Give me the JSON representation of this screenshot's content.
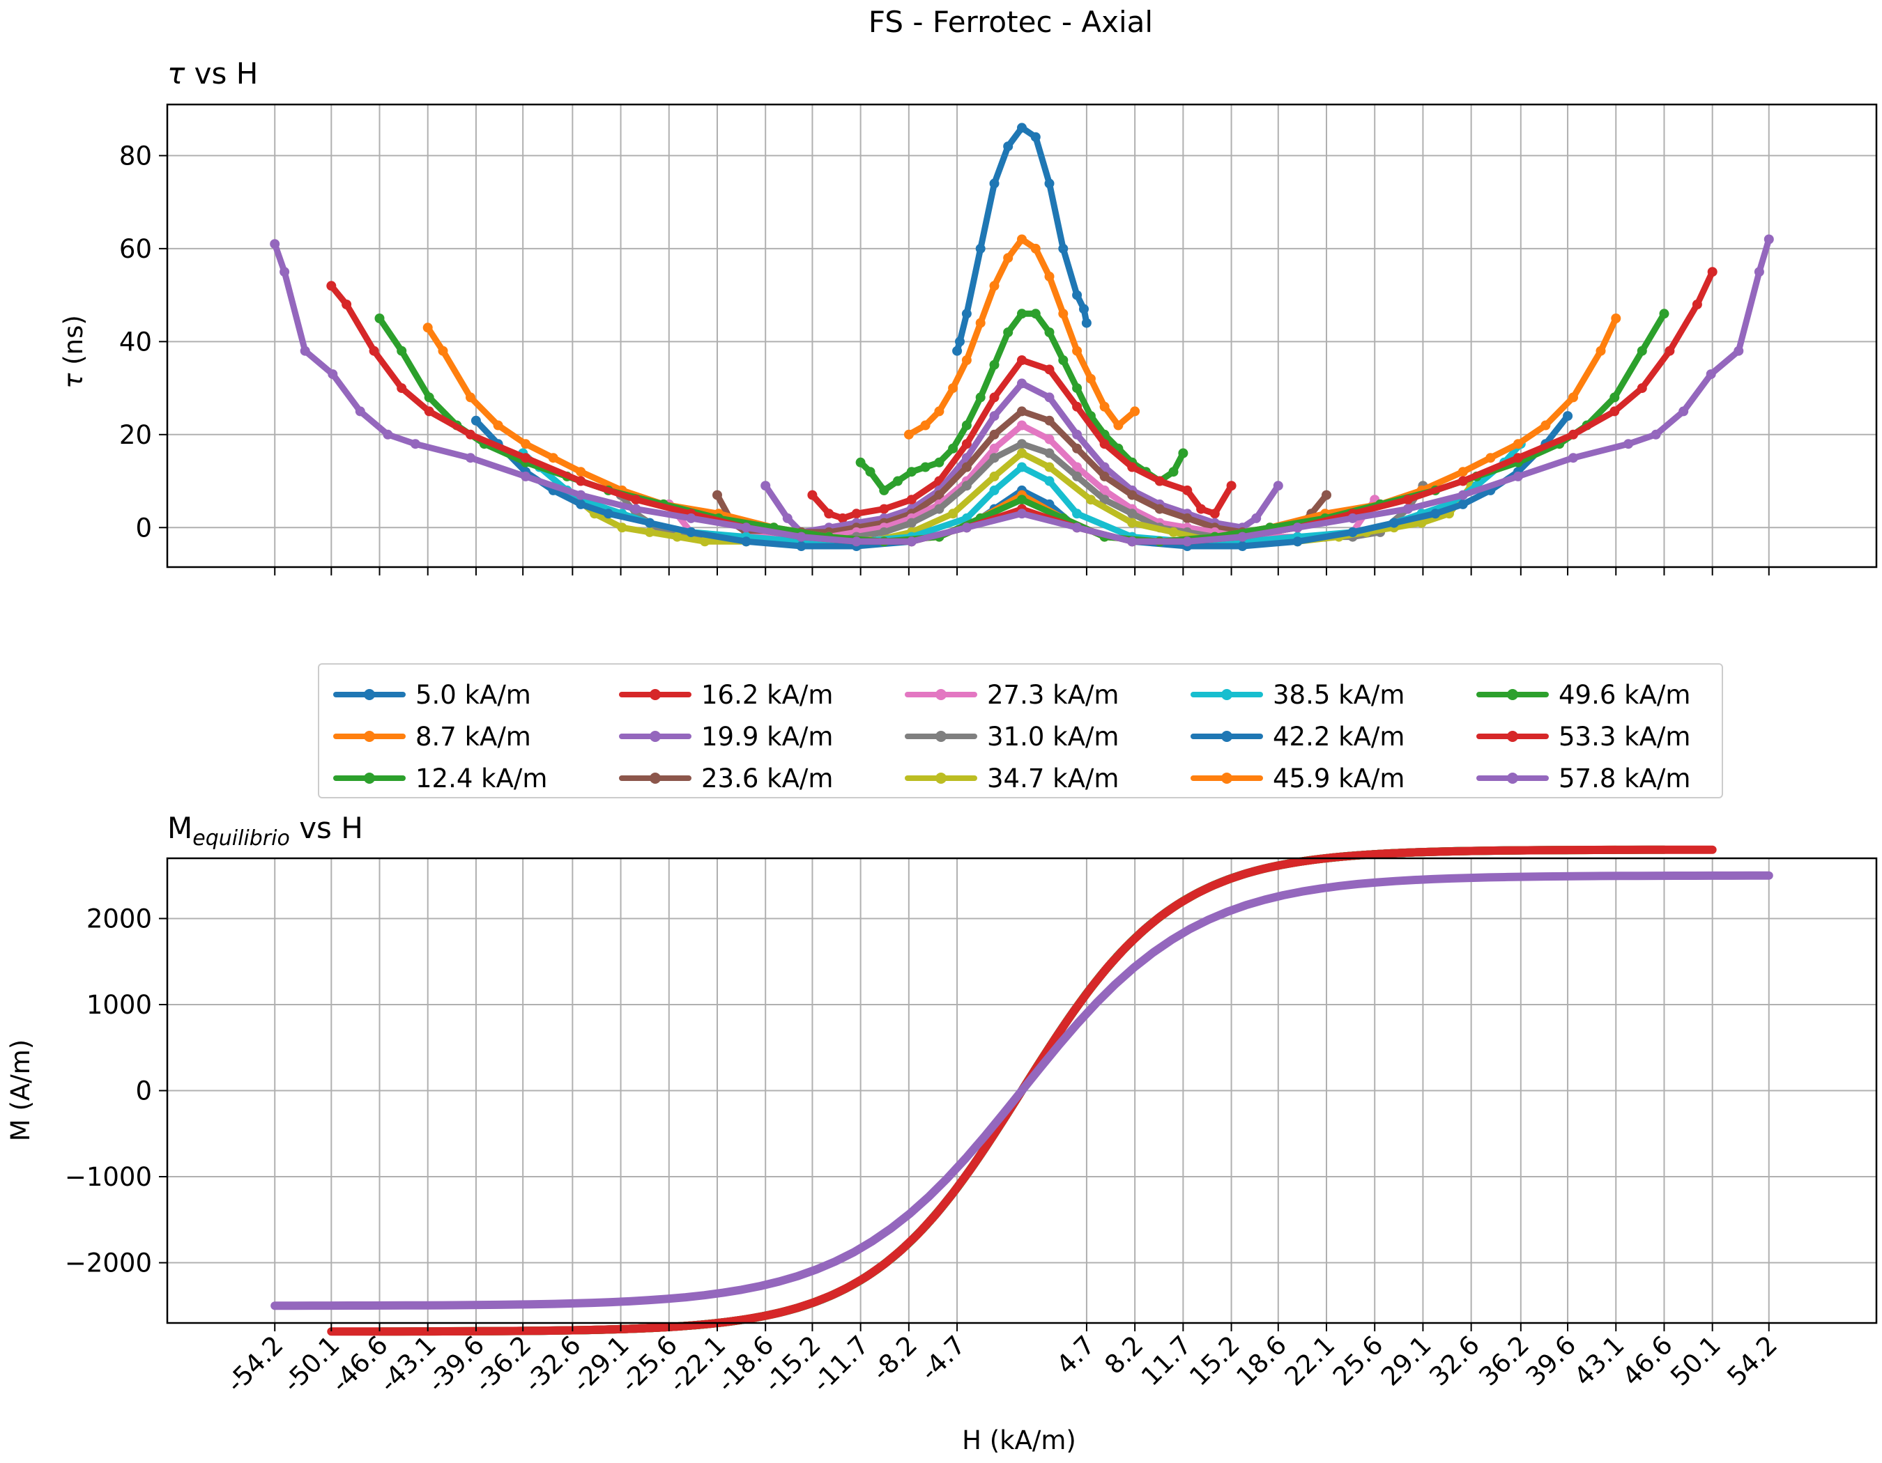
{
  "figure": {
    "suptitle": "FS - Ferrotec - Axial"
  },
  "colors": {
    "tab": [
      "#1f77b4",
      "#ff7f0e",
      "#2ca02c",
      "#d62728",
      "#9467bd",
      "#8c564b",
      "#e377c2",
      "#7f7f7f",
      "#bcbd22",
      "#17becf",
      "#1f77b4",
      "#ff7f0e",
      "#2ca02c",
      "#d62728",
      "#9467bd"
    ],
    "grid": "#b0b0b0"
  },
  "chart_data": [
    {
      "type": "line",
      "title_main": "τ",
      "title_rest": " vs H",
      "ylabel_main": "τ",
      "ylabel_rest": " (ns)",
      "xlabel": "",
      "ylim": [
        -8.5,
        91
      ],
      "xlim": [
        -62,
        62
      ],
      "yticks": [
        0,
        20,
        40,
        60,
        80
      ],
      "ytick_labels": [
        "0",
        "20",
        "40",
        "60",
        "80"
      ],
      "xticks": [
        -54.2,
        -50.1,
        -46.6,
        -43.1,
        -39.6,
        -36.2,
        -32.6,
        -29.1,
        -25.6,
        -22.1,
        -18.6,
        -15.2,
        -11.7,
        -8.2,
        -4.7,
        4.7,
        8.2,
        11.7,
        15.2,
        18.6,
        22.1,
        25.6,
        29.1,
        32.6,
        36.2,
        39.6,
        43.1,
        46.6,
        50.1,
        54.2
      ],
      "grid": true,
      "legend_location": "lower-center",
      "series": [
        {
          "name": "5.0 kA/m",
          "x": [
            -4.7,
            -4.5,
            -4,
            -3,
            -2,
            -1,
            0,
            1,
            2,
            3,
            4,
            4.5,
            4.7
          ],
          "y": [
            38,
            40,
            46,
            60,
            74,
            82,
            86,
            84,
            74,
            60,
            50,
            47,
            44
          ]
        },
        {
          "name": "8.7 kA/m",
          "x": [
            -8.2,
            -7,
            -6,
            -5,
            -4,
            -3,
            -2,
            -1,
            0,
            1,
            2,
            3,
            4,
            5,
            6,
            7,
            8.2
          ],
          "y": [
            20,
            22,
            25,
            30,
            36,
            44,
            52,
            58,
            62,
            60,
            54,
            46,
            38,
            32,
            26,
            22,
            25
          ]
        },
        {
          "name": "12.4 kA/m",
          "x": [
            -11.7,
            -11,
            -10,
            -9,
            -8,
            -7,
            -6,
            -5,
            -4,
            -3,
            -2,
            -1,
            0,
            1,
            2,
            3,
            4,
            5,
            6,
            7,
            8,
            9,
            10,
            11,
            11.7
          ],
          "y": [
            14,
            12,
            8,
            10,
            12,
            13,
            14,
            17,
            22,
            28,
            35,
            42,
            46,
            46,
            42,
            36,
            30,
            24,
            20,
            17,
            14,
            12,
            10,
            12,
            16
          ]
        },
        {
          "name": "16.2 kA/m",
          "x": [
            -15.2,
            -14,
            -13,
            -12,
            -10,
            -8,
            -6,
            -4,
            -2,
            0,
            2,
            4,
            6,
            8,
            10,
            12,
            13,
            14,
            15.2
          ],
          "y": [
            7,
            3,
            2,
            3,
            4,
            6,
            10,
            18,
            28,
            36,
            34,
            26,
            18,
            13,
            10,
            8,
            4,
            3,
            9
          ]
        },
        {
          "name": "19.9 kA/m",
          "x": [
            -18.6,
            -17,
            -16,
            -14,
            -12,
            -10,
            -8,
            -6,
            -4,
            -2,
            0,
            2,
            4,
            6,
            8,
            10,
            12,
            14,
            16,
            17,
            18.6
          ],
          "y": [
            9,
            2,
            -1,
            0,
            1,
            2,
            4,
            8,
            15,
            24,
            31,
            28,
            20,
            13,
            8,
            5,
            3,
            1,
            0,
            2,
            9
          ]
        },
        {
          "name": "23.6 kA/m",
          "x": [
            -22.1,
            -21,
            -20,
            -18,
            -16,
            -14,
            -12,
            -10,
            -8,
            -6,
            -4,
            -2,
            0,
            2,
            4,
            6,
            8,
            10,
            12,
            14,
            16,
            18,
            20,
            21,
            22.1
          ],
          "y": [
            7,
            1,
            -1,
            -1,
            -1,
            -1,
            0,
            1,
            3,
            7,
            13,
            20,
            25,
            23,
            17,
            11,
            7,
            4,
            2,
            0,
            -1,
            -1,
            0,
            3,
            7
          ]
        },
        {
          "name": "27.3 kA/m",
          "x": [
            -25.6,
            -24,
            -22,
            -20,
            -18,
            -16,
            -14,
            -12,
            -10,
            -8,
            -6,
            -4,
            -2,
            0,
            2,
            4,
            6,
            8,
            10,
            12,
            14,
            16,
            18,
            20,
            22,
            24,
            25.6
          ],
          "y": [
            5,
            -1,
            -2,
            -2,
            -2,
            -2,
            -2,
            -1,
            0,
            2,
            5,
            10,
            17,
            22,
            19,
            13,
            8,
            4,
            1,
            0,
            -1,
            -2,
            -2,
            -2,
            -2,
            -1,
            6
          ]
        },
        {
          "name": "31.0 kA/m",
          "x": [
            -29.1,
            -28,
            -26,
            -24,
            -22,
            -20,
            -18,
            -16,
            -14,
            -12,
            -10,
            -8,
            -6,
            -4,
            -2,
            0,
            2,
            4,
            6,
            8,
            10,
            12,
            14,
            16,
            18,
            20,
            22,
            24,
            26,
            28,
            29.1
          ],
          "y": [
            7,
            3,
            -1,
            -2,
            -2,
            -3,
            -3,
            -3,
            -3,
            -2,
            -1,
            1,
            4,
            9,
            15,
            18,
            16,
            11,
            6,
            3,
            0,
            -1,
            -2,
            -3,
            -3,
            -3,
            -2,
            -2,
            -1,
            4,
            9
          ]
        },
        {
          "name": "34.7 kA/m",
          "x": [
            -32.6,
            -31,
            -29,
            -27,
            -25,
            -23,
            -20,
            -17,
            -14,
            -11,
            -8,
            -5,
            -2,
            0,
            2,
            5,
            8,
            11,
            14,
            17,
            20,
            23,
            25,
            27,
            29,
            31,
            32.6
          ],
          "y": [
            7,
            3,
            0,
            -1,
            -2,
            -3,
            -3,
            -3,
            -3,
            -3,
            -1,
            3,
            11,
            16,
            13,
            6,
            1,
            -1,
            -3,
            -3,
            -3,
            -2,
            -1,
            0,
            1,
            3,
            9
          ]
        },
        {
          "name": "38.5 kA/m",
          "x": [
            -36.2,
            -35,
            -33,
            -31,
            -29,
            -27,
            -24,
            -20,
            -16,
            -12,
            -8,
            -4,
            -2,
            0,
            2,
            4,
            8,
            12,
            16,
            20,
            24,
            27,
            29,
            31,
            33,
            35,
            36.2
          ],
          "y": [
            16,
            13,
            8,
            5,
            3,
            1,
            -1,
            -2,
            -3,
            -3,
            -2,
            2,
            8,
            13,
            10,
            3,
            -2,
            -3,
            -3,
            -2,
            -1,
            1,
            3,
            5,
            9,
            14,
            18
          ]
        },
        {
          "name": "42.2 kA/m",
          "x": [
            -39.6,
            -38,
            -36,
            -34,
            -32,
            -30,
            -27,
            -24,
            -20,
            -16,
            -12,
            -8,
            -4,
            -2,
            0,
            2,
            4,
            8,
            12,
            16,
            20,
            24,
            27,
            30,
            32,
            34,
            36,
            38,
            39.6
          ],
          "y": [
            23,
            18,
            12,
            8,
            5,
            3,
            1,
            -1,
            -3,
            -4,
            -4,
            -3,
            0,
            4,
            8,
            5,
            0,
            -3,
            -4,
            -4,
            -3,
            -1,
            1,
            3,
            5,
            8,
            12,
            18,
            24
          ]
        },
        {
          "name": "45.9 kA/m",
          "x": [
            -43.1,
            -42,
            -40,
            -38,
            -36,
            -34,
            -32,
            -29,
            -26,
            -22,
            -18,
            -14,
            -10,
            -6,
            -3,
            0,
            3,
            6,
            10,
            14,
            18,
            22,
            26,
            29,
            32,
            34,
            36,
            38,
            40,
            42,
            43.1
          ],
          "y": [
            43,
            38,
            28,
            22,
            18,
            15,
            12,
            8,
            5,
            3,
            0,
            -2,
            -3,
            -2,
            2,
            7,
            2,
            -2,
            -3,
            -2,
            0,
            3,
            5,
            8,
            12,
            15,
            18,
            22,
            28,
            38,
            45
          ]
        },
        {
          "name": "49.6 kA/m",
          "x": [
            -46.6,
            -45,
            -43,
            -41,
            -39,
            -36,
            -33,
            -30,
            -26,
            -22,
            -18,
            -14,
            -10,
            -6,
            -3,
            0,
            3,
            6,
            10,
            14,
            18,
            22,
            26,
            30,
            33,
            36,
            39,
            41,
            43,
            45,
            46.6
          ],
          "y": [
            45,
            38,
            28,
            22,
            18,
            14,
            11,
            8,
            5,
            2,
            0,
            -2,
            -3,
            -2,
            2,
            6,
            2,
            -2,
            -3,
            -2,
            0,
            2,
            5,
            8,
            11,
            14,
            18,
            22,
            28,
            38,
            46
          ]
        },
        {
          "name": "53.3 kA/m",
          "x": [
            -50.1,
            -49,
            -47,
            -45,
            -43,
            -40,
            -36,
            -32,
            -28,
            -24,
            -20,
            -16,
            -12,
            -8,
            -4,
            0,
            4,
            8,
            12,
            16,
            20,
            24,
            28,
            32,
            36,
            40,
            43,
            45,
            47,
            49,
            50.1
          ],
          "y": [
            52,
            48,
            38,
            30,
            25,
            20,
            15,
            10,
            6,
            3,
            0,
            -2,
            -3,
            -3,
            0,
            4,
            0,
            -3,
            -3,
            -2,
            0,
            3,
            6,
            10,
            15,
            20,
            25,
            30,
            38,
            48,
            55
          ]
        },
        {
          "name": "57.8 kA/m",
          "x": [
            -54.2,
            -53.5,
            -52,
            -50,
            -48,
            -46,
            -44,
            -40,
            -36,
            -32,
            -28,
            -24,
            -20,
            -16,
            -12,
            -8,
            -4,
            0,
            4,
            8,
            12,
            16,
            20,
            24,
            28,
            32,
            36,
            40,
            44,
            46,
            48,
            50,
            52,
            53.5,
            54.2
          ],
          "y": [
            61,
            55,
            38,
            33,
            25,
            20,
            18,
            15,
            11,
            7,
            4,
            2,
            0,
            -2,
            -3,
            -3,
            0,
            3,
            0,
            -3,
            -3,
            -2,
            0,
            2,
            4,
            7,
            11,
            15,
            18,
            20,
            25,
            33,
            38,
            55,
            62
          ]
        }
      ]
    },
    {
      "type": "line",
      "title_main": "M",
      "title_sub": "equilibrio",
      "title_rest": " vs H",
      "ylabel": "M (A/m)",
      "xlabel": "H (kA/m)",
      "ylim": [
        -2700,
        2700
      ],
      "xlim": [
        -62,
        62
      ],
      "yticks": [
        -2000,
        -1000,
        0,
        1000,
        2000
      ],
      "ytick_labels": [
        "−2000",
        "−1000",
        "0",
        "1000",
        "2000"
      ],
      "xticks": [
        -54.2,
        -50.1,
        -46.6,
        -43.1,
        -39.6,
        -36.2,
        -32.6,
        -29.1,
        -25.6,
        -22.1,
        -18.6,
        -15.2,
        -11.7,
        -8.2,
        -4.7,
        4.7,
        8.2,
        11.7,
        15.2,
        18.6,
        22.1,
        25.6,
        29.1,
        32.6,
        36.2,
        39.6,
        43.1,
        46.6,
        50.1,
        54.2
      ],
      "xtick_labels": [
        "-54.2",
        "-50.1",
        "-46.6",
        "-43.1",
        "-39.6",
        "-36.2",
        "-32.6",
        "-29.1",
        "-25.6",
        "-22.1",
        "-18.6",
        "-15.2",
        "-11.7",
        "-8.2",
        "-4.7",
        "4.7",
        "8.2",
        "11.7",
        "15.2",
        "18.6",
        "22.1",
        "25.6",
        "29.1",
        "32.6",
        "36.2",
        "39.6",
        "43.1",
        "46.6",
        "50.1",
        "54.2"
      ],
      "grid": true,
      "series": [
        {
          "name": "5.0 kA/m",
          "Hmax": 4.7,
          "Ms": 2800,
          "a": 11.0
        },
        {
          "name": "8.7 kA/m",
          "Hmax": 8.2,
          "Ms": 2800,
          "a": 11.0
        },
        {
          "name": "12.4 kA/m",
          "Hmax": 11.7,
          "Ms": 2800,
          "a": 11.0
        },
        {
          "name": "16.2 kA/m",
          "Hmax": 15.2,
          "Ms": 2800,
          "a": 11.0
        },
        {
          "name": "19.9 kA/m",
          "Hmax": 18.6,
          "Ms": 2800,
          "a": 11.0
        },
        {
          "name": "23.6 kA/m",
          "Hmax": 22.1,
          "Ms": 2800,
          "a": 11.0
        },
        {
          "name": "27.3 kA/m",
          "Hmax": 25.6,
          "Ms": 2800,
          "a": 11.0
        },
        {
          "name": "31.0 kA/m",
          "Hmax": 29.1,
          "Ms": 2800,
          "a": 11.0
        },
        {
          "name": "34.7 kA/m",
          "Hmax": 32.6,
          "Ms": 2800,
          "a": 11.0
        },
        {
          "name": "38.5 kA/m",
          "Hmax": 36.2,
          "Ms": 2800,
          "a": 11.0
        },
        {
          "name": "42.2 kA/m",
          "Hmax": 39.6,
          "Ms": 2800,
          "a": 11.0
        },
        {
          "name": "45.9 kA/m",
          "Hmax": 43.1,
          "Ms": 2800,
          "a": 11.0
        },
        {
          "name": "49.6 kA/m",
          "Hmax": 46.6,
          "Ms": 2800,
          "a": 11.0
        },
        {
          "name": "53.3 kA/m",
          "Hmax": 50.1,
          "Ms": 2800,
          "a": 11.0
        },
        {
          "name": "57.8 kA/m",
          "Hmax": 54.2,
          "Ms": 2500,
          "a": 12.5
        }
      ]
    }
  ]
}
